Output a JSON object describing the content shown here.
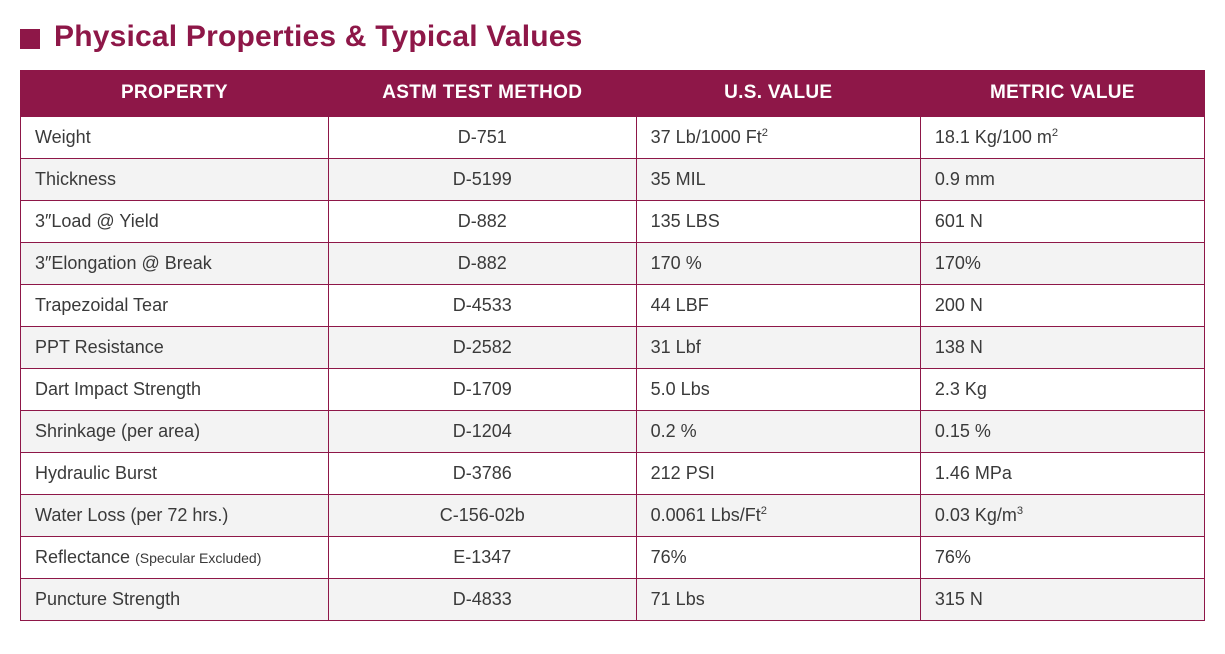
{
  "heading": {
    "title": "Physical Properties & Typical Values",
    "bullet_color": "#8e1748",
    "title_color": "#8e1748",
    "title_fontsize": 30
  },
  "table": {
    "header_bg": "#8e1748",
    "header_fg": "#ffffff",
    "border_color": "#8e1748",
    "row_alt_bg": "#f3f3f3",
    "row_bg": "#ffffff",
    "cell_text_color": "#3a3a3a",
    "header_fontsize": 19,
    "cell_fontsize": 18,
    "columns": [
      {
        "key": "property",
        "label": "PROPERTY",
        "align": "center",
        "width_pct": 26
      },
      {
        "key": "method",
        "label": "ASTM TEST METHOD",
        "align": "center",
        "width_pct": 26
      },
      {
        "key": "us",
        "label": "U.S. VALUE",
        "align": "center",
        "width_pct": 24
      },
      {
        "key": "metric",
        "label": "METRIC VALUE",
        "align": "center",
        "width_pct": 24
      }
    ],
    "rows": [
      {
        "property": "Weight",
        "method": "D-751",
        "us": "37 Lb/1000 Ft²",
        "metric": "18.1 Kg/100 m²"
      },
      {
        "property": "Thickness",
        "method": "D-5199",
        "us": "35 MIL",
        "metric": "0.9 mm"
      },
      {
        "property": "3″Load @ Yield",
        "method": "D-882",
        "us": "135 LBS",
        "metric": "601 N"
      },
      {
        "property": "3″Elongation  @ Break",
        "method": "D-882",
        "us": "170 %",
        "metric": "170%"
      },
      {
        "property": "Trapezoidal Tear",
        "method": "D-4533",
        "us": "44 LBF",
        "metric": "200 N"
      },
      {
        "property": "PPT Resistance",
        "method": "D-2582",
        "us": "31 Lbf",
        "metric": "138 N"
      },
      {
        "property": "Dart Impact Strength",
        "method": "D-1709",
        "us": "5.0 Lbs",
        "metric": "2.3 Kg"
      },
      {
        "property": "Shrinkage (per area)",
        "method": "D-1204",
        "us": "0.2 %",
        "metric": "0.15 %"
      },
      {
        "property": "Hydraulic Burst",
        "method": "D-3786",
        "us": "212 PSI",
        "metric": "1.46 MPa"
      },
      {
        "property": "Water Loss (per 72 hrs.)",
        "method": "C-156-02b",
        "us": "0.0061 Lbs/Ft²",
        "metric": "0.03 Kg/m³"
      },
      {
        "property": "Reflectance",
        "property_note": "(Specular Excluded)",
        "method": "E-1347",
        "us": "76%",
        "metric": "76%"
      },
      {
        "property": "Puncture Strength",
        "method": "D-4833",
        "us": "71 Lbs",
        "metric": "315 N"
      }
    ]
  }
}
